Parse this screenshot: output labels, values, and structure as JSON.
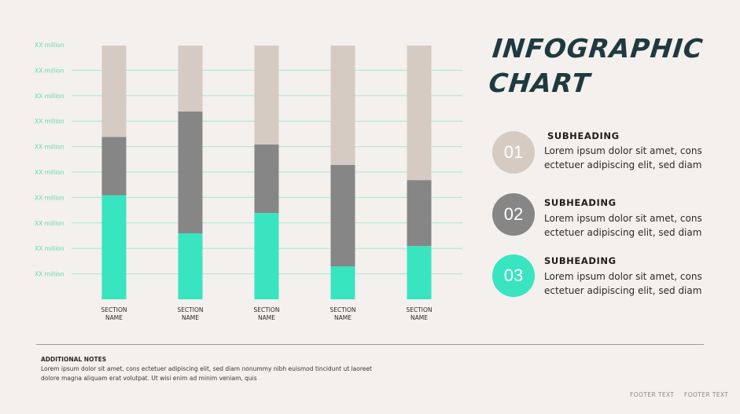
{
  "title": "INFOGRAPHIC\nCHART",
  "colors": {
    "background": "#f3f0ed",
    "top_segment": "#d5cbc3",
    "mid_segment": "#868686",
    "bottom_segment": "#38e5c0",
    "gridline": "#a6e8d4",
    "tick_label": "#6ad8b8",
    "title": "#1f3a3f"
  },
  "legend": [
    {
      "number": "01",
      "heading": "SUBHEADING",
      "text": "Lorem ipsum dolor sit amet, cons ectetuer adipiscing elit, sed diam",
      "color": "#d5cbc3"
    },
    {
      "number": "02",
      "heading": "SUBHEADING",
      "text": "Lorem ipsum dolor sit amet, cons ectetuer adipiscing elit, sed diam",
      "color": "#868686"
    },
    {
      "number": "03",
      "heading": "SUBHEADING",
      "text": "Lorem ipsum dolor sit amet, cons ectetuer adipiscing elit, sed diam",
      "color": "#38e5c0"
    }
  ],
  "notes": {
    "title": "ADDITIONAL NOTES",
    "body": "Lorem ipsum dolor sit amet, cons ectetuer adipiscing elit, sed diam nonummy nibh euismod tincidunt ut laoreet dolore magna aliquam erat volutpat. Ut wisi enim ad minim veniam, quis"
  },
  "footer": [
    "FOOTER TEXT",
    "FOOTER TEXT"
  ],
  "chart_data": {
    "type": "bar",
    "stacked": true,
    "title": "INFOGRAPHIC CHART",
    "categories": [
      "SECTION\nNAME",
      "SECTION\nNAME",
      "SECTION\nNAME",
      "SECTION\nNAME",
      "SECTION\nNAME"
    ],
    "series": [
      {
        "name": "03",
        "color": "#38e5c0",
        "values": [
          41,
          26,
          34,
          13,
          21
        ]
      },
      {
        "name": "02",
        "color": "#868686",
        "values": [
          23,
          48,
          27,
          40,
          26
        ]
      },
      {
        "name": "01",
        "color": "#d5cbc3",
        "values": [
          36,
          26,
          39,
          47,
          53
        ]
      }
    ],
    "ylim": [
      0,
      100
    ],
    "y_tick_labels": [
      "XX million",
      "XX million",
      "XX million",
      "XX million",
      "XX million",
      "XX million",
      "XX million",
      "XX million",
      "XX million",
      "XX million"
    ],
    "gridlines": true,
    "xlabel": "",
    "ylabel": ""
  }
}
